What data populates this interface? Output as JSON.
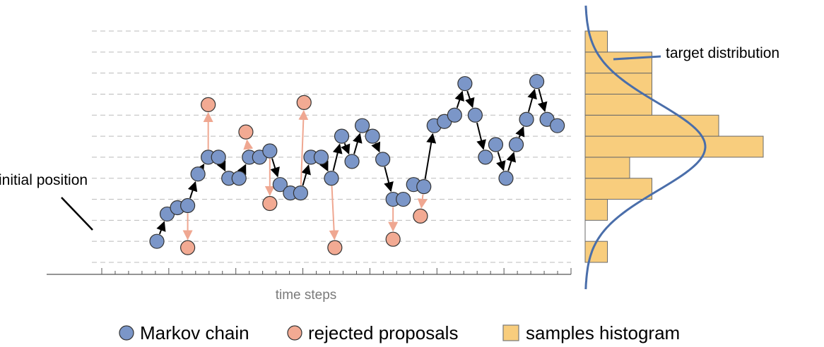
{
  "chart_data": {
    "type": "scatter",
    "title": "",
    "xlabel": "time steps",
    "ylabel": "",
    "grid": true,
    "legend_position": "bottom",
    "y_levels": 11,
    "xlim": [
      0,
      35
    ],
    "ylim": [
      0,
      11
    ],
    "annotations": {
      "initial_position": "initial position",
      "target_distribution": "target distribution"
    },
    "colors": {
      "chain": "#7b96c8",
      "rejected": "#f2aa93",
      "histogram": "#f8cd7d",
      "target_curve": "#4a6eaa",
      "chain_arrow": "#000000",
      "rejected_arrow": "#efa791",
      "grid": "#bbbbbb"
    },
    "series": [
      {
        "name": "Markov chain",
        "points": [
          [
            4.75,
            1.0
          ],
          [
            5.5,
            2.3
          ],
          [
            6.25,
            2.6
          ],
          [
            7.0,
            2.7
          ],
          [
            7.75,
            4.2
          ],
          [
            8.5,
            5.0
          ],
          [
            9.25,
            5.0
          ],
          [
            10.0,
            4.0
          ],
          [
            10.75,
            4.0
          ],
          [
            11.5,
            5.0
          ],
          [
            12.25,
            5.0
          ],
          [
            13.0,
            5.3
          ],
          [
            13.75,
            3.7
          ],
          [
            14.5,
            3.3
          ],
          [
            15.25,
            3.3
          ],
          [
            16.0,
            5.0
          ],
          [
            16.75,
            5.0
          ],
          [
            17.5,
            4.0
          ],
          [
            18.25,
            6.0
          ],
          [
            19.0,
            4.8
          ],
          [
            19.75,
            6.5
          ],
          [
            20.5,
            6.0
          ],
          [
            21.25,
            4.9
          ],
          [
            22.0,
            3.0
          ],
          [
            22.75,
            3.0
          ],
          [
            23.5,
            3.7
          ],
          [
            24.25,
            3.6
          ],
          [
            25.0,
            6.5
          ],
          [
            25.75,
            6.7
          ],
          [
            26.5,
            7.0
          ],
          [
            27.25,
            8.5
          ],
          [
            28.0,
            7.0
          ],
          [
            28.75,
            5.0
          ],
          [
            29.5,
            5.6
          ],
          [
            30.25,
            4.0
          ],
          [
            31.0,
            5.6
          ],
          [
            31.75,
            6.8
          ],
          [
            32.5,
            8.6
          ],
          [
            33.25,
            6.8
          ],
          [
            34.0,
            6.5
          ]
        ]
      },
      {
        "name": "rejected proposals",
        "points": [
          [
            7.0,
            0.7
          ],
          [
            8.5,
            7.5
          ],
          [
            11.25,
            6.2
          ],
          [
            13.0,
            2.8
          ],
          [
            15.5,
            7.6
          ],
          [
            17.75,
            0.7
          ],
          [
            22.0,
            1.1
          ],
          [
            24.0,
            2.2
          ]
        ]
      }
    ],
    "histogram": {
      "name": "samples histogram",
      "counts": [
        1,
        0,
        1,
        3,
        2,
        8,
        6,
        3,
        3,
        3,
        1
      ]
    },
    "legend": [
      {
        "label": "Markov chain",
        "marker": "circle",
        "color": "#7b96c8"
      },
      {
        "label": "rejected proposals",
        "marker": "circle",
        "color": "#f2aa93"
      },
      {
        "label": "samples histogram",
        "marker": "square",
        "color": "#f8cd7d"
      }
    ]
  }
}
